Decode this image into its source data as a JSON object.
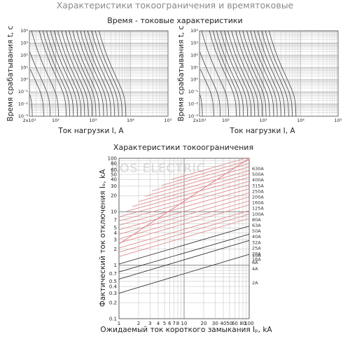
{
  "heading": "Характеристики токоограничения и времятоковые",
  "watermark": "ROS ELECTRIC",
  "colors": {
    "grid": "#b5b5b5",
    "curve": "#3a3a3a",
    "red": "#e08c8c",
    "black": "#1e1e1e"
  },
  "chart_data": [
    {
      "type": "line",
      "title": "Время - токовые характеристики",
      "xlabel": "Ток нагрузки  I, A",
      "ylabel": "Время срабатывания  t, с",
      "xscale": "log",
      "yscale": "log",
      "xlim": [
        20,
        100000
      ],
      "ylim": [
        0.001,
        10000
      ],
      "x_ticks": [
        "2x10¹",
        "10²",
        "10³",
        "10⁴",
        "10⁵"
      ],
      "y_ticks": [
        "10⁻³",
        "10⁻²",
        "10⁻¹",
        "10⁰",
        "10¹",
        "10²",
        "10³",
        "10⁴"
      ],
      "grid": true,
      "ratings": [
        2,
        4,
        6,
        10,
        16,
        20,
        25,
        32,
        40,
        50,
        63,
        80,
        100,
        125,
        160,
        200,
        250,
        315,
        400,
        500,
        630
      ]
    },
    {
      "type": "line",
      "title": "",
      "xlabel": "Ток нагрузки  I, A",
      "ylabel": "Время срабатывания  t, с",
      "xscale": "log",
      "yscale": "log",
      "xlim": [
        20,
        100000
      ],
      "ylim": [
        0.001,
        10000
      ],
      "x_ticks": [
        "2x10¹",
        "10²",
        "10³",
        "10⁴",
        "10⁵"
      ],
      "y_ticks": [
        "10⁻³",
        "10⁻²",
        "10⁻¹",
        "10⁰",
        "10¹",
        "10²",
        "10³",
        "10⁴"
      ],
      "grid": true,
      "ratings": [
        2,
        4,
        6,
        10,
        16,
        20,
        25,
        32,
        40,
        50,
        63,
        80,
        100,
        125,
        160,
        200,
        250,
        315,
        400,
        500,
        630
      ]
    },
    {
      "type": "line",
      "title": "Характеристики токоограничения",
      "xlabel": "Ожидаемый ток короткого замыкания  Iₚ, kA",
      "ylabel": "Фактический ток отключения  Iₑ, kA",
      "xscale": "log",
      "yscale": "log",
      "xlim": [
        1,
        100
      ],
      "ylim": [
        0.1,
        100
      ],
      "x_ticks": [
        "1",
        "2",
        "3",
        "4",
        "5",
        "6",
        "7",
        "8",
        "10",
        "20",
        "30",
        "40",
        "50",
        "60",
        "80",
        "100"
      ],
      "y_ticks": [
        "0.1",
        "0.2",
        "0.3",
        "0.4",
        "0.5",
        "0.7",
        "1",
        "2",
        "3",
        "4",
        "5",
        "7",
        "10",
        "20",
        "30",
        "40",
        "50",
        "60",
        "80",
        "100"
      ],
      "grid": true,
      "peak_line": {
        "name": "",
        "x": [
          1,
          100
        ],
        "y": [
          2.5,
          100
        ]
      },
      "series": [
        {
          "name": "630A",
          "x": [
            6.3,
            100
          ],
          "y": [
            40,
            105
          ]
        },
        {
          "name": "500A",
          "x": [
            4.5,
            100
          ],
          "y": [
            31,
            92
          ]
        },
        {
          "name": "400A",
          "x": [
            3.2,
            100
          ],
          "y": [
            24.5,
            80
          ]
        },
        {
          "name": "315A",
          "x": [
            2.5,
            100
          ],
          "y": [
            19.5,
            69
          ]
        },
        {
          "name": "250A",
          "x": [
            2,
            100
          ],
          "y": [
            15.5,
            59
          ]
        },
        {
          "name": "200A",
          "x": [
            1.6,
            100
          ],
          "y": [
            12.5,
            51
          ]
        },
        {
          "name": "160A",
          "x": [
            1.3,
            100
          ],
          "y": [
            10.2,
            44
          ]
        },
        {
          "name": "125A",
          "x": [
            1,
            100
          ],
          "y": [
            8,
            37
          ]
        },
        {
          "name": "100A",
          "x": [
            1,
            100
          ],
          "y": [
            6.7,
            32
          ]
        },
        {
          "name": "80A",
          "x": [
            1,
            100
          ],
          "y": [
            5.6,
            27
          ]
        },
        {
          "name": "63A",
          "x": [
            1,
            100
          ],
          "y": [
            4.6,
            22.5
          ]
        },
        {
          "name": "50A",
          "x": [
            1,
            100
          ],
          "y": [
            3.8,
            19
          ]
        },
        {
          "name": "40A",
          "x": [
            1,
            100
          ],
          "y": [
            3.1,
            16
          ]
        },
        {
          "name": "32A",
          "x": [
            1,
            100
          ],
          "y": [
            2.6,
            13.5
          ]
        },
        {
          "name": "25A",
          "x": [
            1,
            100
          ],
          "y": [
            2.1,
            10.5
          ]
        },
        {
          "name": "20A",
          "x": [
            1,
            100
          ],
          "y": [
            1.75,
            9
          ]
        },
        {
          "name": "16A",
          "x": [
            1,
            100
          ],
          "y": [
            1.45,
            7.5
          ]
        },
        {
          "name": "10A",
          "x": [
            1,
            100
          ],
          "y": [
            1.05,
            5.4
          ]
        },
        {
          "name": "6A",
          "x": [
            1,
            100
          ],
          "y": [
            0.75,
            3.8
          ]
        },
        {
          "name": "4A",
          "x": [
            1,
            100
          ],
          "y": [
            0.55,
            2.9
          ]
        },
        {
          "name": "2A",
          "x": [
            1,
            100
          ],
          "y": [
            0.3,
            1.6
          ]
        }
      ]
    }
  ]
}
